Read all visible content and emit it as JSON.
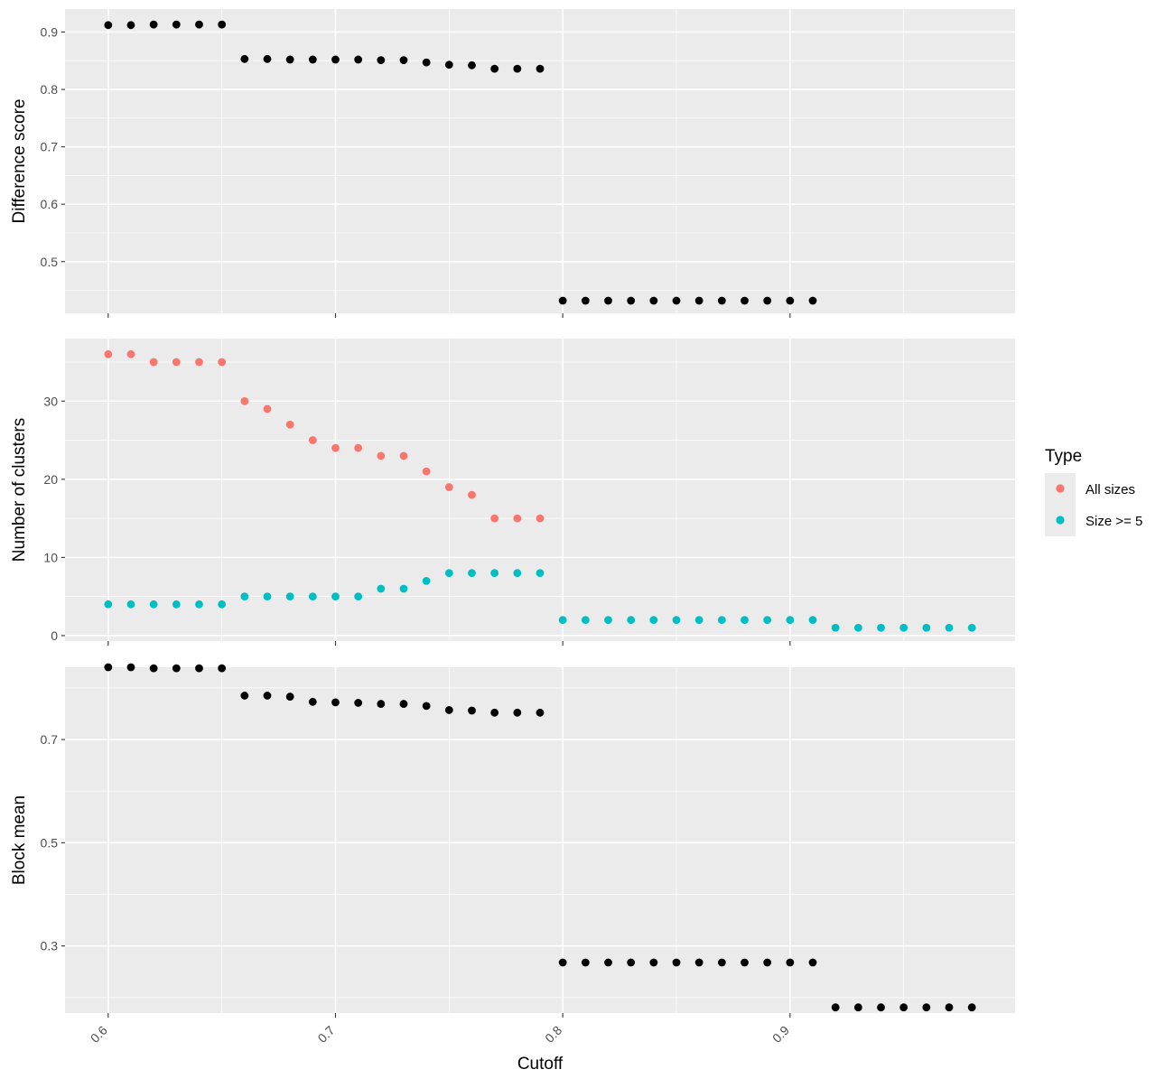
{
  "chart_data": [
    {
      "type": "scatter",
      "id": "difference",
      "ylabel": "Difference score",
      "ylim": [
        0.41,
        0.94
      ],
      "yticks": [
        0.5,
        0.6,
        0.7,
        0.8,
        0.9
      ],
      "ytick_labels": [
        "0.5",
        "0.6",
        "0.7",
        "0.8",
        "0.9"
      ],
      "series": [
        {
          "color": "#000000",
          "x": [
            0.6,
            0.61,
            0.62,
            0.63,
            0.64,
            0.65,
            0.66,
            0.67,
            0.68,
            0.69,
            0.7,
            0.71,
            0.72,
            0.73,
            0.74,
            0.75,
            0.76,
            0.77,
            0.78,
            0.79,
            0.8,
            0.81,
            0.82,
            0.83,
            0.84,
            0.85,
            0.86,
            0.87,
            0.88,
            0.89,
            0.9,
            0.91
          ],
          "y": [
            0.912,
            0.912,
            0.913,
            0.913,
            0.913,
            0.913,
            0.853,
            0.853,
            0.852,
            0.852,
            0.852,
            0.852,
            0.851,
            0.851,
            0.847,
            0.843,
            0.842,
            0.836,
            0.836,
            0.836,
            0.432,
            0.432,
            0.432,
            0.432,
            0.432,
            0.432,
            0.432,
            0.432,
            0.432,
            0.432,
            0.432,
            0.432
          ]
        }
      ]
    },
    {
      "type": "scatter",
      "id": "clusters",
      "ylabel": "Number of clusters",
      "ylim": [
        -0.7,
        38
      ],
      "yticks": [
        0,
        10,
        20,
        30
      ],
      "ytick_labels": [
        "0",
        "10",
        "20",
        "30"
      ],
      "series": [
        {
          "name": "All sizes",
          "color": "#F8766D",
          "x": [
            0.6,
            0.61,
            0.62,
            0.63,
            0.64,
            0.65,
            0.66,
            0.67,
            0.68,
            0.69,
            0.7,
            0.71,
            0.72,
            0.73,
            0.74,
            0.75,
            0.76,
            0.77,
            0.78,
            0.79
          ],
          "y": [
            36,
            36,
            35,
            35,
            35,
            35,
            30,
            29,
            27,
            25,
            24,
            24,
            23,
            23,
            21,
            19,
            18,
            15,
            15,
            15
          ]
        },
        {
          "name": "Size >= 5",
          "color": "#00BFC4",
          "x": [
            0.6,
            0.61,
            0.62,
            0.63,
            0.64,
            0.65,
            0.66,
            0.67,
            0.68,
            0.69,
            0.7,
            0.71,
            0.72,
            0.73,
            0.74,
            0.75,
            0.76,
            0.77,
            0.78,
            0.79,
            0.8,
            0.81,
            0.82,
            0.83,
            0.84,
            0.85,
            0.86,
            0.87,
            0.88,
            0.89,
            0.9,
            0.91,
            0.92,
            0.93,
            0.94,
            0.95,
            0.96,
            0.97,
            0.98
          ],
          "y": [
            4,
            4,
            4,
            4,
            4,
            4,
            5,
            5,
            5,
            5,
            5,
            5,
            6,
            6,
            7,
            8,
            8,
            8,
            8,
            8,
            2,
            2,
            2,
            2,
            2,
            2,
            2,
            2,
            2,
            2,
            2,
            2,
            1,
            1,
            1,
            1,
            1,
            1,
            1
          ]
        }
      ]
    },
    {
      "type": "scatter",
      "id": "blockmean",
      "ylabel": "Block mean",
      "ylim": [
        0.17,
        0.84
      ],
      "yticks": [
        0.3,
        0.5,
        0.7
      ],
      "ytick_labels": [
        "0.3",
        "0.5",
        "0.7"
      ],
      "series": [
        {
          "color": "#000000",
          "x": [
            0.6,
            0.61,
            0.62,
            0.63,
            0.64,
            0.65,
            0.66,
            0.67,
            0.68,
            0.69,
            0.7,
            0.71,
            0.72,
            0.73,
            0.74,
            0.75,
            0.76,
            0.77,
            0.78,
            0.79,
            0.8,
            0.81,
            0.82,
            0.83,
            0.84,
            0.85,
            0.86,
            0.87,
            0.88,
            0.89,
            0.9,
            0.91,
            0.92,
            0.93,
            0.94,
            0.95,
            0.96,
            0.97,
            0.98
          ],
          "y": [
            0.84,
            0.84,
            0.838,
            0.838,
            0.838,
            0.838,
            0.785,
            0.785,
            0.783,
            0.773,
            0.772,
            0.771,
            0.769,
            0.769,
            0.765,
            0.757,
            0.756,
            0.752,
            0.752,
            0.752,
            0.268,
            0.268,
            0.268,
            0.268,
            0.268,
            0.268,
            0.268,
            0.268,
            0.268,
            0.268,
            0.268,
            0.268,
            0.181,
            0.181,
            0.181,
            0.181,
            0.181,
            0.181,
            0.181
          ]
        }
      ]
    }
  ],
  "x_axis": {
    "label": "Cutoff",
    "xlim": [
      0.581,
      0.999
    ],
    "ticks": [
      0.6,
      0.7,
      0.8,
      0.9
    ],
    "tick_labels": [
      "0.6",
      "0.7",
      "0.8",
      "0.9"
    ]
  },
  "legend": {
    "title": "Type",
    "placement": "right",
    "entries": [
      {
        "label": "All sizes",
        "color": "#F8766D"
      },
      {
        "label": "Size >= 5",
        "color": "#00BFC4"
      }
    ]
  },
  "colors": {
    "panel_background": "#EBEBEB",
    "grid": "#FFFFFF",
    "tick": "#333333"
  }
}
